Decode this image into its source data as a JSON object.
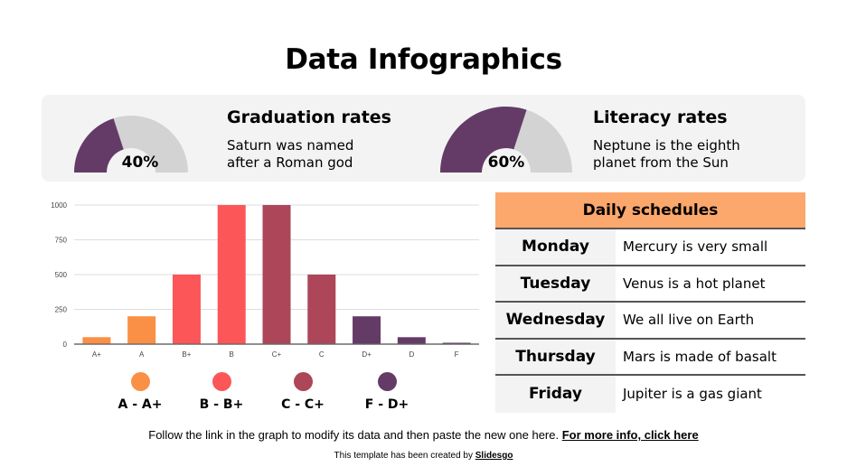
{
  "page": {
    "title": "Data Infographics"
  },
  "stats": [
    {
      "title": "Graduation rates",
      "value_label": "40%",
      "percent": 40,
      "description_line1": "Saturn was named",
      "description_line2": "after a Roman god"
    },
    {
      "title": "Literacy rates",
      "value_label": "60%",
      "percent": 60,
      "description_line1": "Neptune is the eighth",
      "description_line2": "planet from the Sun"
    }
  ],
  "colors": {
    "gauge_fill": "#643b66",
    "gauge_track": "#d3d3d3",
    "panel_bg": "#f3f3f3",
    "orange": "#fa8f46",
    "coral": "#fc5658",
    "rose": "#ad4658",
    "plum": "#643b66",
    "schedule_header": "#fca76c"
  },
  "chart_data": {
    "type": "bar",
    "title": "",
    "xlabel": "",
    "ylabel": "",
    "categories": [
      "A+",
      "A",
      "B+",
      "B",
      "C+",
      "C",
      "D+",
      "D",
      "F"
    ],
    "values": [
      50,
      200,
      500,
      1000,
      1000,
      500,
      200,
      50,
      10
    ],
    "bar_colors": [
      "#fa8f46",
      "#fa8f46",
      "#fc5658",
      "#fc5658",
      "#ad4658",
      "#ad4658",
      "#643b66",
      "#643b66",
      "#643b66"
    ],
    "ylim": [
      0,
      1000
    ],
    "yticks": [
      0,
      250,
      500,
      750,
      1000
    ],
    "grid": true,
    "legend_position": "bottom"
  },
  "legend": [
    {
      "label": "A - A+",
      "color": "#fa8f46"
    },
    {
      "label": "B - B+",
      "color": "#fc5658"
    },
    {
      "label": "C - C+",
      "color": "#ad4658"
    },
    {
      "label": "F - D+",
      "color": "#643b66"
    }
  ],
  "schedule": {
    "header": "Daily schedules",
    "rows": [
      {
        "day": "Monday",
        "text": "Mercury is very small"
      },
      {
        "day": "Tuesday",
        "text": "Venus is a hot planet"
      },
      {
        "day": "Wednesday",
        "text": "We all live on Earth"
      },
      {
        "day": "Thursday",
        "text": "Mars is made of basalt"
      },
      {
        "day": "Friday",
        "text": "Jupiter is a gas giant"
      }
    ]
  },
  "footer": {
    "note": "Follow the link in the graph to modify its data and then paste the new one here. ",
    "link_label": "For more info, click here",
    "credit_prefix": "This template has been created by ",
    "credit_link": "Slidesgo"
  }
}
